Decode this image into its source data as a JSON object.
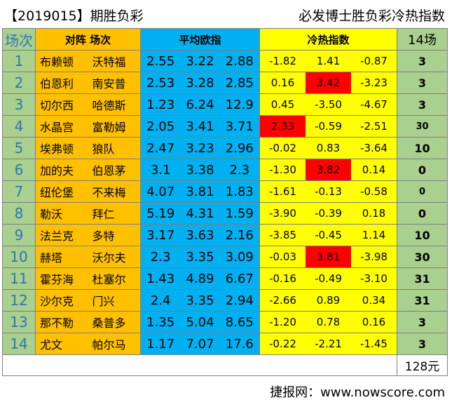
{
  "header": {
    "issue": "【2019015】期胜负彩",
    "title": "必发博士胜负彩冷热指数"
  },
  "columns": {
    "index": "场次",
    "match": "对阵 场次",
    "odds": "平均欧指",
    "heat": "冷热指数",
    "result": "14场"
  },
  "rows": [
    {
      "idx": "1",
      "home": "布赖顿",
      "away": "沃特福",
      "odds": [
        "2.55",
        "3.22",
        "2.88"
      ],
      "heat": [
        "-1.82",
        "1.41",
        "-0.87"
      ],
      "hot": -1,
      "result": "3"
    },
    {
      "idx": "2",
      "home": "伯恩利",
      "away": "南安普",
      "odds": [
        "2.53",
        "3.28",
        "2.85"
      ],
      "heat": [
        "0.16",
        "3.42",
        "-3.23"
      ],
      "hot": 1,
      "result": "3"
    },
    {
      "idx": "3",
      "home": "切尔西",
      "away": "哈德斯",
      "odds": [
        "1.23",
        "6.24",
        "12.9"
      ],
      "heat": [
        "0.45",
        "-3.50",
        "-4.67"
      ],
      "hot": -1,
      "result": "3"
    },
    {
      "idx": "4",
      "home": "水晶宫",
      "away": "富勒姆",
      "odds": [
        "2.05",
        "3.41",
        "3.71"
      ],
      "heat": [
        "2.33",
        "-0.59",
        "-2.51"
      ],
      "hot": 0,
      "result": "30"
    },
    {
      "idx": "5",
      "home": "埃弗顿",
      "away": "狼队",
      "odds": [
        "2.47",
        "3.23",
        "2.96"
      ],
      "heat": [
        "-0.02",
        "0.83",
        "-3.64"
      ],
      "hot": -1,
      "result": "10"
    },
    {
      "idx": "6",
      "home": "加的夫",
      "away": "伯恩茅",
      "odds": [
        "3.1",
        "3.38",
        "2.3"
      ],
      "heat": [
        "-1.30",
        "3.82",
        "0.14"
      ],
      "hot": 1,
      "result": "0"
    },
    {
      "idx": "7",
      "home": "纽伦堡",
      "away": "不来梅",
      "odds": [
        "4.07",
        "3.81",
        "1.83"
      ],
      "heat": [
        "-1.61",
        "-0.13",
        "-0.58"
      ],
      "hot": -1,
      "result": "0"
    },
    {
      "idx": "8",
      "home": "勒沃",
      "away": "拜仁",
      "odds": [
        "5.19",
        "4.31",
        "1.59"
      ],
      "heat": [
        "-3.90",
        "-0.39",
        "0.18"
      ],
      "hot": -1,
      "result": "0"
    },
    {
      "idx": "9",
      "home": "法兰克",
      "away": "多特",
      "odds": [
        "3.17",
        "3.63",
        "2.16"
      ],
      "heat": [
        "-3.85",
        "-0.45",
        "1.14"
      ],
      "hot": -1,
      "result": "10"
    },
    {
      "idx": "10",
      "home": "赫塔",
      "away": "沃尔夫",
      "odds": [
        "2.3",
        "3.35",
        "3.09"
      ],
      "heat": [
        "-0.03",
        "3.81",
        "-3.98"
      ],
      "hot": 1,
      "result": "30"
    },
    {
      "idx": "11",
      "home": "霍芬海",
      "away": "杜塞尔",
      "odds": [
        "1.43",
        "4.89",
        "6.67"
      ],
      "heat": [
        "-0.16",
        "-0.49",
        "-3.10"
      ],
      "hot": -1,
      "result": "31"
    },
    {
      "idx": "12",
      "home": "沙尔克",
      "away": "门兴",
      "odds": [
        "2.4",
        "3.35",
        "2.94"
      ],
      "heat": [
        "-2.66",
        "0.89",
        "0.34"
      ],
      "hot": -1,
      "result": "31"
    },
    {
      "idx": "13",
      "home": "那不勒",
      "away": "桑普多",
      "odds": [
        "1.35",
        "5.04",
        "8.65"
      ],
      "heat": [
        "-1.20",
        "0.78",
        "0.16"
      ],
      "hot": -1,
      "result": "3"
    },
    {
      "idx": "14",
      "home": "尤文",
      "away": "帕尔马",
      "odds": [
        "1.17",
        "7.07",
        "17.6"
      ],
      "heat": [
        "-0.22",
        "-2.21",
        "-1.45"
      ],
      "hot": -1,
      "result": "3"
    }
  ],
  "prize": "128元",
  "site": "捷报网：www.nowscore.com",
  "colors": {
    "index_bg": "#a9d08e",
    "match_bg": "#ffc000",
    "odds_bg": "#00b0f0",
    "heat_bg": "#ffff00",
    "hot_bg": "#ff0000"
  }
}
